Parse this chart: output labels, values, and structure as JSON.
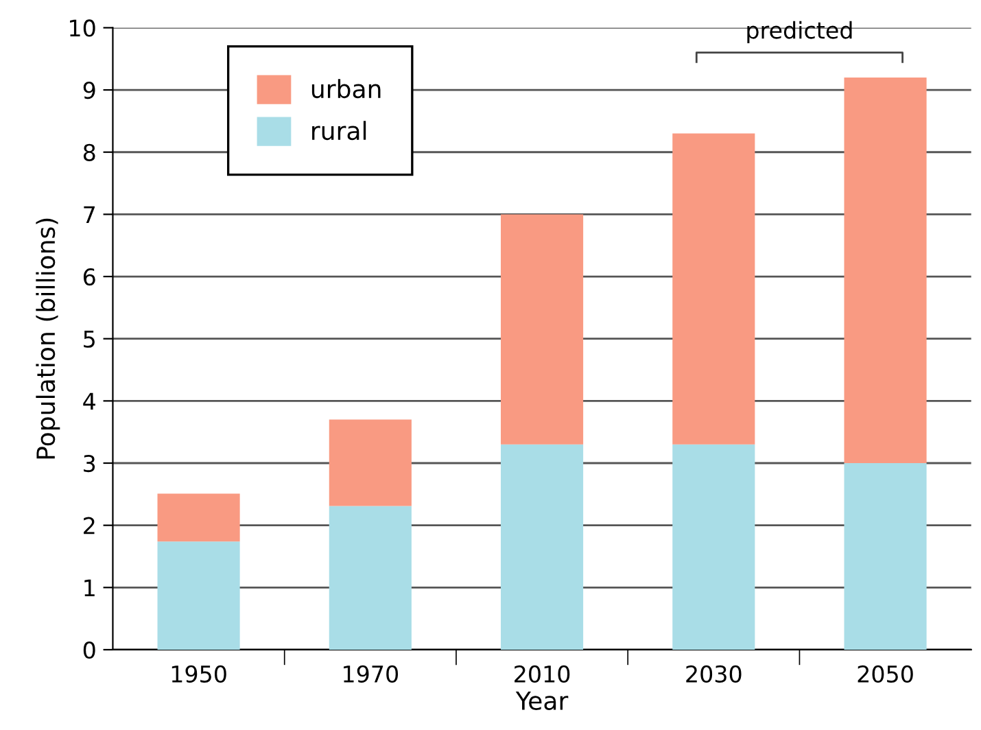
{
  "chart_data": {
    "type": "bar",
    "stacked": true,
    "xlabel": "Year",
    "ylabel": "Population (billions)",
    "categories": [
      "1950",
      "1970",
      "2010",
      "2030",
      "2050"
    ],
    "series": [
      {
        "name": "rural",
        "color": "#a9dde7",
        "values": [
          1.74,
          2.31,
          3.3,
          3.3,
          3.0
        ]
      },
      {
        "name": "urban",
        "color": "#f99a82",
        "values": [
          0.77,
          1.39,
          3.7,
          5.0,
          6.2
        ]
      }
    ],
    "ylim": [
      0,
      10
    ],
    "yticks": [
      0,
      1,
      2,
      3,
      4,
      5,
      6,
      7,
      8,
      9,
      10
    ],
    "grid": "y",
    "legend": "top left",
    "annotations": [
      "predicted"
    ]
  }
}
